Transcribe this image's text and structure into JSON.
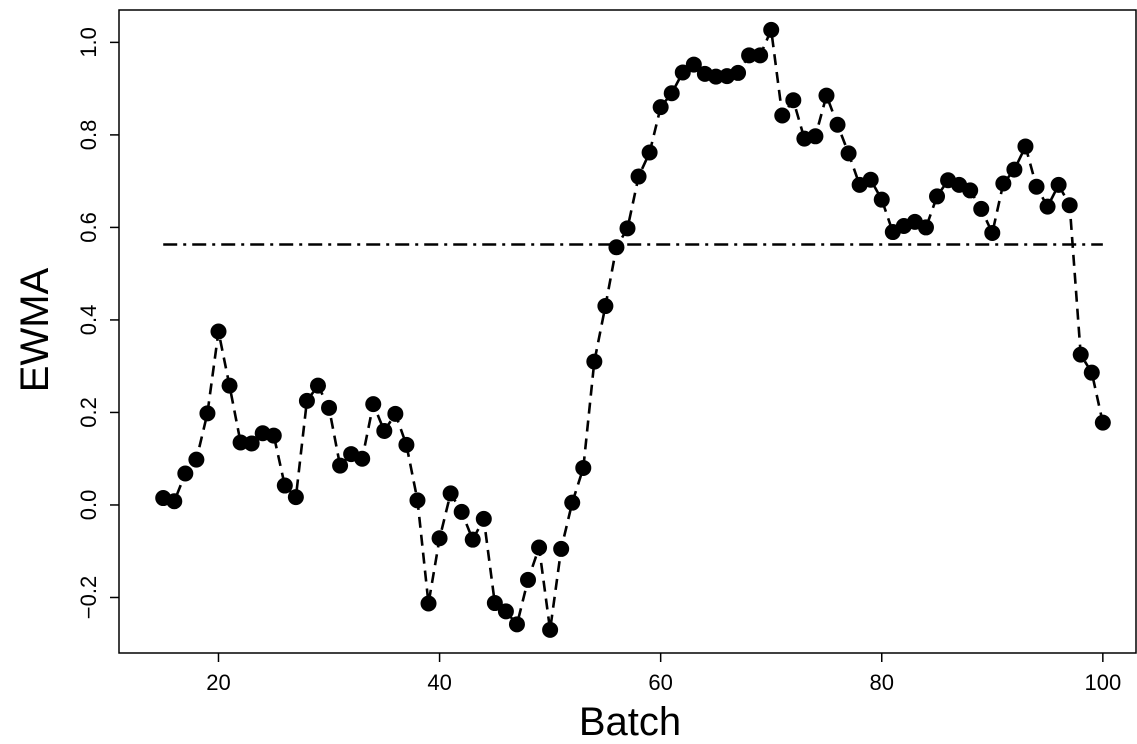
{
  "chart_data": {
    "type": "line",
    "xlabel": "Batch",
    "ylabel": "EWMA",
    "xlim": [
      11,
      103
    ],
    "ylim": [
      -0.32,
      1.07
    ],
    "x_ticks": [
      "20",
      "40",
      "60",
      "80",
      "100"
    ],
    "y_ticks": [
      "-0.2",
      "0.0",
      "0.2",
      "0.4",
      "0.6",
      "0.8",
      "1.0"
    ],
    "grid": false,
    "series": [
      {
        "style": "dashed line with filled circle markers",
        "color": "#000000",
        "points": [
          [
            15,
            0.015
          ],
          [
            16,
            0.008
          ],
          [
            17,
            0.068
          ],
          [
            18,
            0.098
          ],
          [
            19,
            0.198
          ],
          [
            20,
            0.375
          ],
          [
            21,
            0.258
          ],
          [
            22,
            0.135
          ],
          [
            23,
            0.133
          ],
          [
            24,
            0.155
          ],
          [
            25,
            0.15
          ],
          [
            26,
            0.042
          ],
          [
            27,
            0.017
          ],
          [
            28,
            0.225
          ],
          [
            29,
            0.258
          ],
          [
            30,
            0.21
          ],
          [
            31,
            0.085
          ],
          [
            32,
            0.11
          ],
          [
            33,
            0.1
          ],
          [
            34,
            0.218
          ],
          [
            35,
            0.16
          ],
          [
            36,
            0.197
          ],
          [
            37,
            0.13
          ],
          [
            38,
            0.01
          ],
          [
            39,
            -0.213
          ],
          [
            40,
            -0.072
          ],
          [
            41,
            0.025
          ],
          [
            42,
            -0.015
          ],
          [
            43,
            -0.075
          ],
          [
            44,
            -0.03
          ],
          [
            45,
            -0.212
          ],
          [
            46,
            -0.23
          ],
          [
            47,
            -0.258
          ],
          [
            48,
            -0.162
          ],
          [
            49,
            -0.092
          ],
          [
            50,
            -0.27
          ],
          [
            51,
            -0.095
          ],
          [
            52,
            0.005
          ],
          [
            53,
            0.08
          ],
          [
            54,
            0.31
          ],
          [
            55,
            0.43
          ],
          [
            56,
            0.557
          ],
          [
            57,
            0.598
          ],
          [
            58,
            0.71
          ],
          [
            59,
            0.762
          ],
          [
            60,
            0.86
          ],
          [
            61,
            0.89
          ],
          [
            62,
            0.935
          ],
          [
            63,
            0.952
          ],
          [
            64,
            0.932
          ],
          [
            65,
            0.926
          ],
          [
            66,
            0.927
          ],
          [
            67,
            0.934
          ],
          [
            68,
            0.972
          ],
          [
            69,
            0.972
          ],
          [
            70,
            1.027
          ],
          [
            71,
            0.842
          ],
          [
            72,
            0.875
          ],
          [
            73,
            0.792
          ],
          [
            74,
            0.797
          ],
          [
            75,
            0.885
          ],
          [
            76,
            0.822
          ],
          [
            77,
            0.76
          ],
          [
            78,
            0.692
          ],
          [
            79,
            0.703
          ],
          [
            80,
            0.66
          ],
          [
            81,
            0.59
          ],
          [
            82,
            0.603
          ],
          [
            83,
            0.612
          ],
          [
            84,
            0.6
          ],
          [
            85,
            0.667
          ],
          [
            86,
            0.702
          ],
          [
            87,
            0.692
          ],
          [
            88,
            0.68
          ],
          [
            89,
            0.64
          ],
          [
            90,
            0.588
          ],
          [
            91,
            0.695
          ],
          [
            92,
            0.725
          ],
          [
            93,
            0.775
          ],
          [
            94,
            0.688
          ],
          [
            95,
            0.645
          ],
          [
            96,
            0.692
          ],
          [
            97,
            0.648
          ],
          [
            98,
            0.325
          ],
          [
            99,
            0.286
          ],
          [
            100,
            0.178
          ]
        ]
      }
    ],
    "reference_line": {
      "style": "dash-dot",
      "y": 0.563,
      "x_range": [
        15,
        100
      ],
      "color": "#000000"
    }
  }
}
